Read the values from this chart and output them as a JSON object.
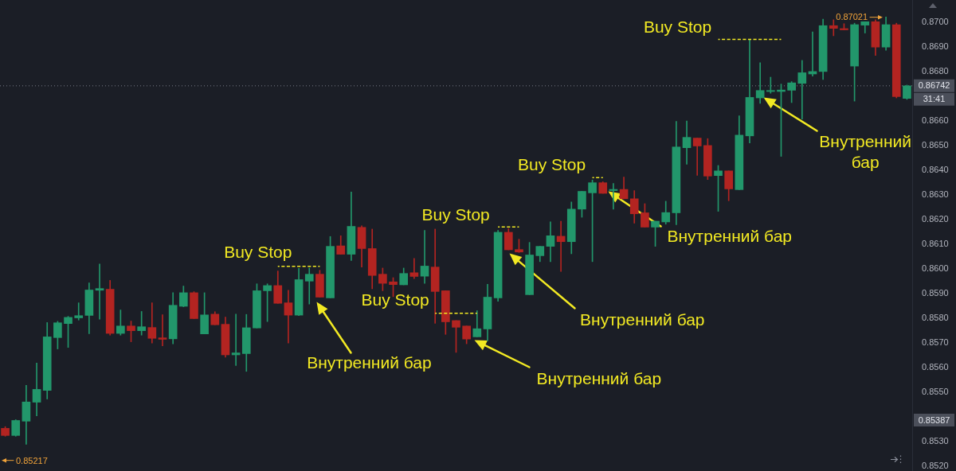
{
  "chart_data": {
    "type": "candlestick",
    "categories": [
      null,
      null,
      null,
      null,
      null,
      null,
      null,
      null,
      null,
      null,
      null,
      null,
      null,
      null,
      null,
      null,
      null,
      null,
      null,
      null,
      null,
      null,
      null,
      null,
      null,
      null,
      null,
      null,
      null,
      null,
      null,
      null,
      null,
      null,
      null,
      null,
      null,
      null,
      null,
      null,
      null,
      null,
      null,
      null,
      null,
      null,
      null,
      null,
      null,
      null,
      null,
      null,
      null,
      null,
      null,
      null,
      null,
      null,
      null,
      null,
      null,
      null,
      null,
      null,
      null,
      null,
      null,
      null,
      null,
      null,
      null,
      null,
      null,
      null,
      null,
      null,
      null,
      null,
      null,
      null,
      null,
      null,
      null,
      null,
      null,
      null,
      null
    ],
    "ohlc": [
      [
        0.85353,
        0.8536,
        0.85321,
        0.85324
      ],
      [
        0.85324,
        0.85388,
        0.85321,
        0.85385
      ],
      [
        0.85382,
        0.85527,
        0.85288,
        0.8546
      ],
      [
        0.85459,
        0.85618,
        0.85404,
        0.85511
      ],
      [
        0.85507,
        0.85782,
        0.85472,
        0.85724
      ],
      [
        0.85721,
        0.85787,
        0.85675,
        0.85781
      ],
      [
        0.85778,
        0.85807,
        0.85681,
        0.85803
      ],
      [
        0.85801,
        0.85862,
        0.85792,
        0.8581
      ],
      [
        0.85811,
        0.85943,
        0.85737,
        0.85914
      ],
      [
        0.85913,
        0.86019,
        0.85796,
        0.8592
      ],
      [
        0.85917,
        0.85953,
        0.85731,
        0.85738
      ],
      [
        0.85738,
        0.85833,
        0.85731,
        0.85768
      ],
      [
        0.85768,
        0.85788,
        0.85704,
        0.85749
      ],
      [
        0.85749,
        0.85827,
        0.85731,
        0.85765
      ],
      [
        0.85762,
        0.85862,
        0.85699,
        0.85718
      ],
      [
        0.8572,
        0.85814,
        0.85688,
        0.85714
      ],
      [
        0.85716,
        0.85903,
        0.85696,
        0.85852
      ],
      [
        0.85848,
        0.8593,
        0.85846,
        0.85903
      ],
      [
        0.85903,
        0.85907,
        0.85798,
        0.85798
      ],
      [
        0.85736,
        0.85903,
        0.85736,
        0.85813
      ],
      [
        0.85816,
        0.85826,
        0.85773,
        0.85773
      ],
      [
        0.85775,
        0.85804,
        0.85642,
        0.85651
      ],
      [
        0.85651,
        0.85816,
        0.85608,
        0.85659
      ],
      [
        0.85656,
        0.85815,
        0.85584,
        0.85761
      ],
      [
        0.8576,
        0.85939,
        0.8576,
        0.85911
      ],
      [
        0.85911,
        0.85939,
        0.85786,
        0.85932
      ],
      [
        0.85932,
        0.85991,
        0.8586,
        0.8586
      ],
      [
        0.85862,
        0.85913,
        0.85699,
        0.85812
      ],
      [
        0.85812,
        0.86002,
        0.8581,
        0.85956
      ],
      [
        0.8595,
        0.86003,
        0.85857,
        0.85978
      ],
      [
        0.85978,
        0.85994,
        0.85885,
        0.85885
      ],
      [
        0.85882,
        0.86131,
        0.85882,
        0.86091
      ],
      [
        0.86093,
        0.86134,
        0.86059,
        0.86059
      ],
      [
        0.86059,
        0.86311,
        0.86034,
        0.86172
      ],
      [
        0.86168,
        0.86174,
        0.86007,
        0.86082
      ],
      [
        0.86082,
        0.86161,
        0.85919,
        0.85973
      ],
      [
        0.85978,
        0.86003,
        0.85911,
        0.85941
      ],
      [
        0.85947,
        0.85964,
        0.85887,
        0.85936
      ],
      [
        0.85935,
        0.86003,
        0.85935,
        0.85981
      ],
      [
        0.85984,
        0.86042,
        0.8596,
        0.85969
      ],
      [
        0.8597,
        0.86156,
        0.85941,
        0.86011
      ],
      [
        0.86007,
        0.86161,
        0.85779,
        0.85908
      ],
      [
        0.85911,
        0.85911,
        0.85734,
        0.85785
      ],
      [
        0.8579,
        0.8579,
        0.85661,
        0.85763
      ],
      [
        0.85768,
        0.85768,
        0.85696,
        0.85715
      ],
      [
        0.85724,
        0.8583,
        0.85724,
        0.85757
      ],
      [
        0.85756,
        0.85937,
        0.85708,
        0.85885
      ],
      [
        0.85882,
        0.86156,
        0.85868,
        0.86148
      ],
      [
        0.86148,
        0.86163,
        0.86077,
        0.86077
      ],
      [
        0.86078,
        0.8612,
        0.86066,
        0.86068
      ],
      [
        0.85895,
        0.86107,
        0.85895,
        0.86056
      ],
      [
        0.86053,
        0.86091,
        0.86029,
        0.86091
      ],
      [
        0.86091,
        0.8619,
        0.86029,
        0.86134
      ],
      [
        0.86132,
        0.86193,
        0.85989,
        0.8611
      ],
      [
        0.8611,
        0.86271,
        0.86061,
        0.86242
      ],
      [
        0.86242,
        0.86314,
        0.86209,
        0.86314
      ],
      [
        0.86308,
        0.8636,
        0.86029,
        0.86349
      ],
      [
        0.86349,
        0.86353,
        0.86306,
        0.86306
      ],
      [
        0.86317,
        0.86346,
        0.86242,
        0.86322
      ],
      [
        0.86322,
        0.86372,
        0.86284,
        0.86284
      ],
      [
        0.86284,
        0.86317,
        0.86185,
        0.86223
      ],
      [
        0.86227,
        0.86264,
        0.86169,
        0.86169
      ],
      [
        0.86169,
        0.86193,
        0.86091,
        0.86193
      ],
      [
        0.8619,
        0.86274,
        0.86181,
        0.86228
      ],
      [
        0.86227,
        0.86598,
        0.86179,
        0.86494
      ],
      [
        0.86491,
        0.86599,
        0.86424,
        0.86533
      ],
      [
        0.8653,
        0.8653,
        0.86379,
        0.86498
      ],
      [
        0.865,
        0.86528,
        0.86362,
        0.86376
      ],
      [
        0.86378,
        0.86419,
        0.86233,
        0.86397
      ],
      [
        0.86397,
        0.86397,
        0.86276,
        0.86324
      ],
      [
        0.86321,
        0.8662,
        0.86321,
        0.86542
      ],
      [
        0.86539,
        0.86931,
        0.8651,
        0.86695
      ],
      [
        0.86693,
        0.86836,
        0.86671,
        0.86723
      ],
      [
        0.86719,
        0.86777,
        0.86712,
        0.86723
      ],
      [
        0.86719,
        0.86749,
        0.86456,
        0.86725
      ],
      [
        0.86724,
        0.86759,
        0.86674,
        0.86754
      ],
      [
        0.86752,
        0.86845,
        0.86607,
        0.86795
      ],
      [
        0.8679,
        0.86961,
        0.86781,
        0.868
      ],
      [
        0.868,
        0.87012,
        0.86768,
        0.86986
      ],
      [
        0.86986,
        0.8701,
        0.86945,
        0.86975
      ],
      [
        0.86974,
        0.86994,
        0.86969,
        0.86969
      ],
      [
        0.86822,
        0.86996,
        0.8668,
        0.8699
      ],
      [
        0.86988,
        0.87002,
        0.86956,
        0.87002
      ],
      [
        0.87002,
        0.8701,
        0.86865,
        0.86899
      ],
      [
        0.86899,
        0.87021,
        0.86886,
        0.8699
      ],
      [
        0.8699,
        0.86996,
        0.86693,
        0.86698
      ],
      [
        0.86691,
        0.86745,
        0.86687,
        0.86742
      ]
    ],
    "colors": [
      "#b32421",
      "#22976b",
      "#22976b",
      "#22976b",
      "#22976b",
      "#22976b",
      "#22976b",
      "#22976b",
      "#22976b",
      "#22976b",
      "#b32421",
      "#22976b",
      "#b32421",
      "#22976b",
      "#b32421",
      "#b32421",
      "#22976b",
      "#22976b",
      "#b32421",
      "#22976b",
      "#b32421",
      "#b32421",
      "#22976b",
      "#22976b",
      "#22976b",
      "#22976b",
      "#b32421",
      "#b32421",
      "#22976b",
      "#22976b",
      "#b32421",
      "#22976b",
      "#b32421",
      "#22976b",
      "#b32421",
      "#b32421",
      "#b32421",
      "#b32421",
      "#22976b",
      "#b32421",
      "#22976b",
      "#b32421",
      "#b32421",
      "#b32421",
      "#b32421",
      "#22976b",
      "#22976b",
      "#22976b",
      "#b32421",
      "#b32421",
      "#22976b",
      "#22976b",
      "#22976b",
      "#b32421",
      "#22976b",
      "#22976b",
      "#22976b",
      "#b32421",
      "#22976b",
      "#b32421",
      "#b32421",
      "#b32421",
      "#22976b",
      "#22976b",
      "#22976b",
      "#22976b",
      "#b32421",
      "#b32421",
      "#22976b",
      "#b32421",
      "#22976b",
      "#22976b",
      "#22976b",
      "#22976b",
      "#22976b",
      "#22976b",
      "#22976b",
      "#22976b",
      "#22976b",
      "#b32421",
      "#b32421",
      "#22976b",
      "#22976b",
      "#b32421",
      "#22976b",
      "#b32421",
      "#22976b"
    ],
    "series": [
      {
        "type": "line",
        "color": "#f2e923",
        "line_style": "dashed",
        "values": [
          null,
          null,
          null,
          null,
          null,
          null,
          null,
          null,
          null,
          null,
          null,
          null,
          null,
          null,
          null,
          null,
          null,
          null,
          null,
          null,
          null,
          null,
          null,
          null,
          null,
          null,
          0.8601,
          0.8601,
          0.8601,
          0.8601,
          0.8601,
          null,
          null,
          null,
          null,
          null,
          null,
          null,
          null,
          null,
          null,
          0.8582,
          0.8582,
          0.8582,
          0.8582,
          0.8582,
          null,
          0.8617,
          0.8617,
          0.8617,
          null,
          null,
          null,
          null,
          null,
          null,
          0.8637,
          0.8637,
          null,
          null,
          null,
          null,
          null,
          null,
          null,
          null,
          null,
          null,
          0.8693,
          0.8693,
          0.8693,
          0.8693,
          0.8693,
          0.8693,
          0.8693,
          null,
          null,
          null,
          null,
          null,
          null,
          null,
          null,
          null,
          null,
          null,
          null
        ]
      }
    ],
    "ylim": [
      0.8518,
      0.8709
    ],
    "yticks": [
      {
        "value": 0.852,
        "label": "0.8520"
      },
      {
        "value": 0.853,
        "label": "0.8530"
      },
      {
        "value": 0.855,
        "label": "0.8550"
      },
      {
        "value": 0.856,
        "label": "0.8560"
      },
      {
        "value": 0.857,
        "label": "0.8570"
      },
      {
        "value": 0.858,
        "label": "0.8580"
      },
      {
        "value": 0.859,
        "label": "0.8590"
      },
      {
        "value": 0.86,
        "label": "0.8600"
      },
      {
        "value": 0.861,
        "label": "0.8610"
      },
      {
        "value": 0.862,
        "label": "0.8620"
      },
      {
        "value": 0.863,
        "label": "0.8630"
      },
      {
        "value": 0.864,
        "label": "0.8640"
      },
      {
        "value": 0.865,
        "label": "0.8650"
      },
      {
        "value": 0.866,
        "label": "0.8660"
      },
      {
        "value": 0.868,
        "label": "0.8680"
      },
      {
        "value": 0.869,
        "label": "0.8690"
      },
      {
        "value": 0.87,
        "label": "0.8700"
      }
    ],
    "tick_labels": "y",
    "ref_lines": [
      {
        "axis": "y",
        "value": 0.86742,
        "label": "0.86742",
        "color": "#787b86",
        "line_style": "dotted"
      }
    ],
    "annotations": [
      "Buy Stop",
      "Buy Stop",
      "Buy Stop",
      "Buy Stop",
      "Buy Stop",
      "Внутренний бар",
      "Внутренний бар",
      "Внутренний бар",
      "Внутренний бар",
      "Внутренний бар",
      "0.87021",
      "0.85217",
      "0.85387",
      "31:41"
    ]
  }
}
